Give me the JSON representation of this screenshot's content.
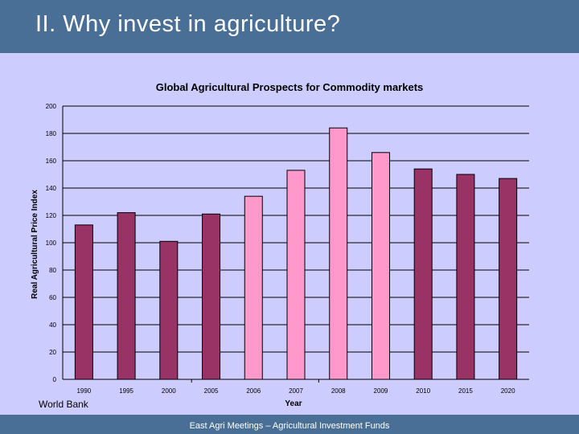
{
  "slide": {
    "title": "II. Why invest in agriculture?",
    "source": "World Bank",
    "footer": "East Agri Meetings – Agricultural Investment Funds"
  },
  "colors": {
    "header_bg": "#4a6f96",
    "slide_bg": "#ccccff",
    "dark_bar": "#993366",
    "light_bar": "#ff99cc"
  },
  "chart_data": {
    "type": "bar",
    "title": "Global Agricultural Prospects for Commodity markets",
    "xlabel": "Year",
    "ylabel": "Real Agricultural Price Index",
    "ylim": [
      0,
      200
    ],
    "y_ticks": [
      0,
      20,
      40,
      60,
      80,
      100,
      120,
      140,
      160,
      180,
      200
    ],
    "categories": [
      "1990",
      "1995",
      "2000",
      "2005",
      "2006",
      "2007",
      "2008",
      "2009",
      "2010",
      "2015",
      "2020"
    ],
    "values": [
      113,
      122,
      101,
      121,
      134,
      153,
      184,
      166,
      154,
      150,
      147
    ],
    "bar_colors": [
      "#993366",
      "#993366",
      "#993366",
      "#993366",
      "#ff99cc",
      "#ff99cc",
      "#ff99cc",
      "#ff99cc",
      "#993366",
      "#993366",
      "#993366"
    ],
    "grid": true,
    "legend": "none"
  }
}
